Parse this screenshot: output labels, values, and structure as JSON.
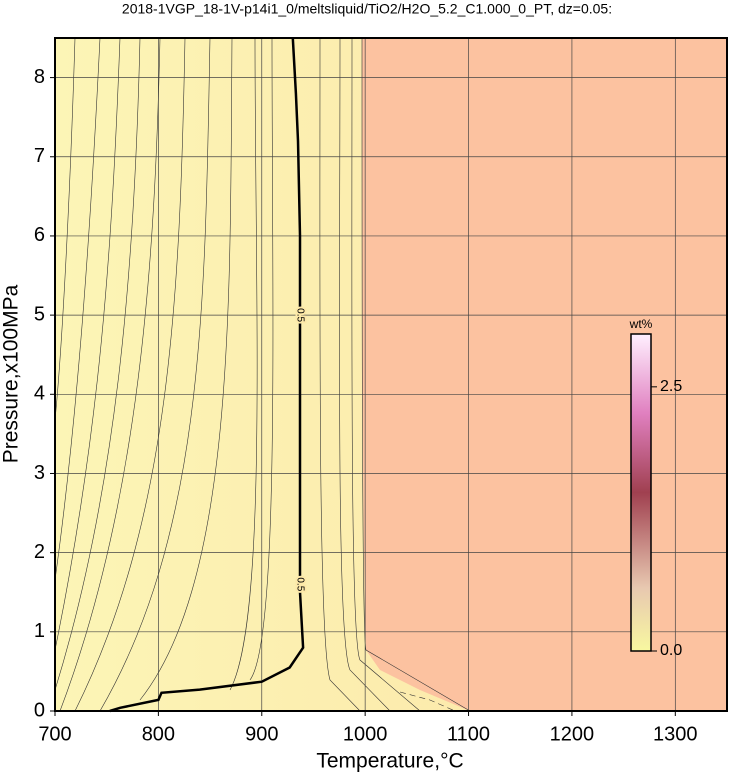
{
  "chart_data": {
    "type": "contour",
    "title": "2018-1VGP_18-1V-p14i1_0/meltsliquid/TiO2/H2O_5.2_C1.000_0_PT, dz=0.05:",
    "x_label": "Temperature,°C",
    "y_label": "Pressure,x100MPa",
    "xlim": [
      700,
      1350
    ],
    "ylim": [
      0,
      8.5
    ],
    "xticks": [
      700,
      800,
      900,
      1000,
      1100,
      1200,
      1300
    ],
    "yticks": [
      0,
      1,
      2,
      3,
      4,
      5,
      6,
      7,
      8
    ],
    "grid": true,
    "contours": [
      {
        "level": 0.5,
        "color": "#000000",
        "x": [
          753,
          763,
          800,
          803,
          840,
          900,
          927,
          940,
          937,
          937,
          935,
          933,
          930
        ],
        "y": [
          0,
          0.04,
          0.14,
          0.23,
          0.27,
          0.37,
          0.55,
          0.8,
          1.5,
          6,
          7.2,
          7.8,
          8.5
        ]
      }
    ],
    "colorbar": {
      "label": "wt%",
      "lim": [
        0,
        3.0
      ],
      "ticks": [
        {
          "value": 0,
          "label": "0.0"
        },
        {
          "value": 2.5,
          "label": "2.5"
        }
      ]
    }
  }
}
